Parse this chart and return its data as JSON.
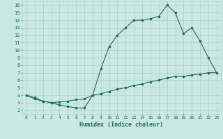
{
  "xlabel": "Humidex (Indice chaleur)",
  "bg_color": "#cce8e4",
  "line_color": "#1a6b5a",
  "grid_color": "#aad4ce",
  "xlim": [
    -0.5,
    23.5
  ],
  "ylim": [
    1.5,
    16.5
  ],
  "xticks": [
    0,
    1,
    2,
    3,
    4,
    5,
    6,
    7,
    8,
    9,
    10,
    11,
    12,
    13,
    14,
    15,
    16,
    17,
    18,
    19,
    20,
    21,
    22,
    23
  ],
  "yticks": [
    2,
    3,
    4,
    5,
    6,
    7,
    8,
    9,
    10,
    11,
    12,
    13,
    14,
    15,
    16
  ],
  "line1_x": [
    0,
    1,
    2,
    3,
    4,
    5,
    6,
    7,
    8,
    9,
    10,
    11,
    12,
    13,
    14,
    15,
    16,
    17,
    18,
    19,
    20,
    21,
    22,
    23
  ],
  "line1_y": [
    4.0,
    3.7,
    3.2,
    3.0,
    2.7,
    2.5,
    2.3,
    2.3,
    4.0,
    7.5,
    10.5,
    12.0,
    13.0,
    14.0,
    14.0,
    14.2,
    14.5,
    16.0,
    15.0,
    12.2,
    13.0,
    11.2,
    9.0,
    7.0
  ],
  "line2_x": [
    0,
    1,
    2,
    3,
    4,
    5,
    6,
    7,
    8,
    9,
    10,
    11,
    12,
    13,
    14,
    15,
    16,
    17,
    18,
    19,
    20,
    21,
    22,
    23
  ],
  "line2_y": [
    4.0,
    3.5,
    3.2,
    3.0,
    3.1,
    3.2,
    3.4,
    3.5,
    4.0,
    4.2,
    4.5,
    4.8,
    5.0,
    5.3,
    5.5,
    5.8,
    6.0,
    6.3,
    6.5,
    6.5,
    6.7,
    6.8,
    7.0,
    7.0
  ]
}
